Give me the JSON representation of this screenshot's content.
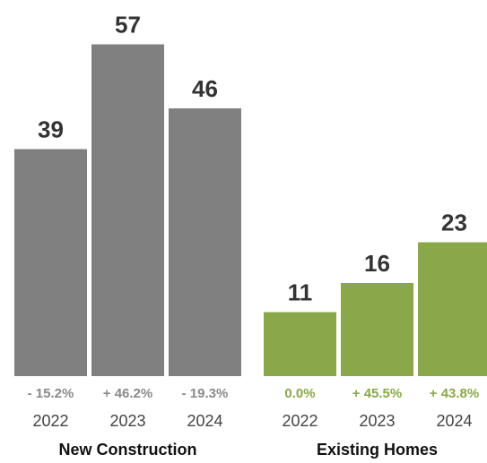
{
  "chart_data": {
    "type": "bar",
    "ylim": [
      0,
      60
    ],
    "groups": [
      {
        "name": "New Construction",
        "color": "#808080",
        "pct_color": "#8a8a8a",
        "categories": [
          "2022",
          "2023",
          "2024"
        ],
        "values": [
          39,
          57,
          46
        ],
        "value_labels": [
          "39",
          "57",
          "46"
        ],
        "change_labels": [
          "- 15.2%",
          "+ 46.2%",
          "- 19.3%"
        ]
      },
      {
        "name": "Existing Homes",
        "color": "#8aa84a",
        "pct_color": "#8aa84a",
        "categories": [
          "2022",
          "2023",
          "2024"
        ],
        "values": [
          11,
          16,
          23
        ],
        "value_labels": [
          "11",
          "16",
          "23"
        ],
        "change_labels": [
          "0.0%",
          "+ 45.5%",
          "+ 43.8%"
        ]
      }
    ]
  }
}
